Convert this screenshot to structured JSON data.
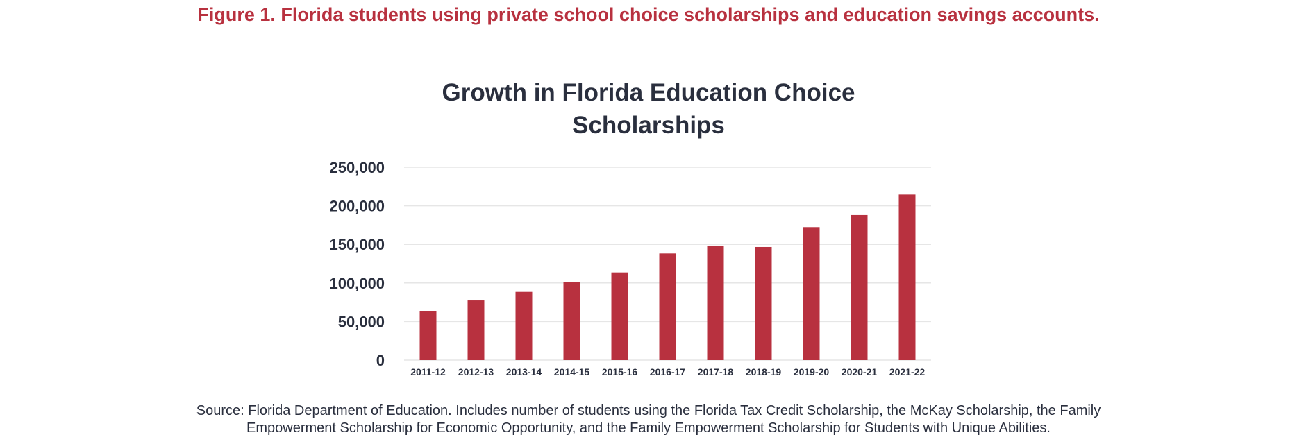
{
  "figure_caption": "Figure 1. Florida students using private school choice scholarships and education savings accounts.",
  "source_note": {
    "line1": "Source: Florida Department of Education. Includes number of students using the Florida Tax Credit Scholarship, the McKay Scholarship, the Family",
    "line2": "Empowerment Scholarship for Economic Opportunity, and the Family Empowerment Scholarship for Students with Unique Abilities."
  },
  "colors": {
    "bar": "#b8313f",
    "caption": "#b8313f",
    "text": "#2a2f3e",
    "grid": "#e6e6e6"
  },
  "chart_data": {
    "type": "bar",
    "title": "Growth in Florida Education Choice Scholarships",
    "title_lines": [
      "Growth in Florida Education Choice",
      "Scholarships"
    ],
    "xlabel": "",
    "ylabel": "",
    "categories": [
      "2011-12",
      "2012-13",
      "2013-14",
      "2014-15",
      "2015-16",
      "2016-17",
      "2017-18",
      "2018-19",
      "2019-20",
      "2020-21",
      "2021-22"
    ],
    "values": [
      63800,
      77300,
      88400,
      101000,
      113600,
      138200,
      148400,
      146600,
      172400,
      188000,
      214600
    ],
    "ylim": [
      0,
      250000
    ],
    "yticks": [
      0,
      50000,
      100000,
      150000,
      200000,
      250000
    ],
    "ytick_labels": [
      "0",
      "50,000",
      "100,000",
      "150,000",
      "200,000",
      "250,000"
    ],
    "grid": true,
    "legend": "none"
  }
}
